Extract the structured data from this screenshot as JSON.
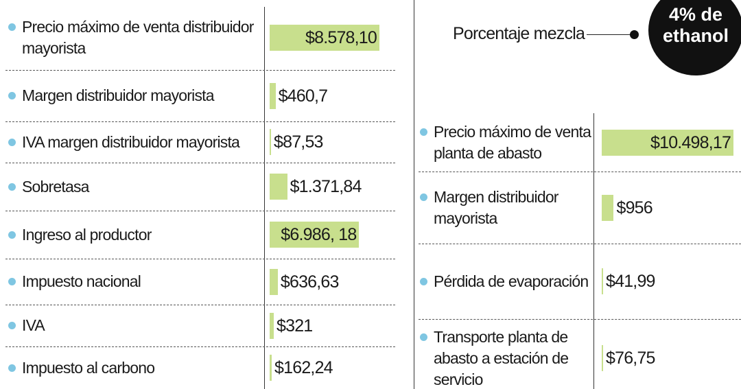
{
  "chart_data": [
    {
      "type": "bar",
      "orientation": "horizontal",
      "color": "#c8df8d",
      "categories": [
        "Precio máximo de venta distribuidor mayorista",
        "Margen distribuidor mayorista",
        "IVA margen distribuidor mayorista",
        "Sobretasa",
        "Ingreso al productor",
        "Impuesto nacional",
        "IVA",
        "Impuesto al carbono"
      ],
      "values": [
        8578.1,
        460.7,
        87.53,
        1371.84,
        6986.18,
        636.63,
        321,
        162.24
      ],
      "value_labels": [
        "$8.578,10",
        "$460,7",
        "$87,53",
        "$1.371,84",
        "$6.986, 18",
        "$636,63",
        "$321",
        "$162,24"
      ]
    },
    {
      "type": "bar",
      "orientation": "horizontal",
      "color": "#c8df8d",
      "annotations": [
        "Porcentaje mezcla",
        "4% de ethanol"
      ],
      "categories": [
        "Precio máximo de venta planta de abasto",
        "Margen distribuidor mayorista",
        "Pérdida de evaporación",
        "Transporte planta de abasto a estación de servicio"
      ],
      "values": [
        10498.17,
        956,
        41.99,
        76.75
      ],
      "value_labels": [
        "$10.498,17",
        "$956",
        "$41,99",
        "$76,75"
      ]
    }
  ]
}
